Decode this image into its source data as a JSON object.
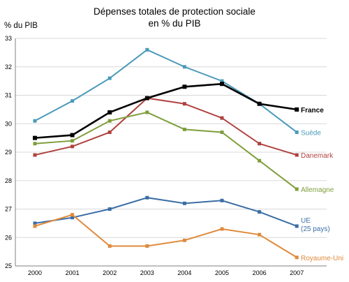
{
  "chart_data": {
    "type": "line",
    "title": [
      "Dépenses totales de protection sociale",
      "en % du PIB"
    ],
    "ylabel": "% du PIB",
    "xlabel": "",
    "x": [
      "2000",
      "2001",
      "2002",
      "2003",
      "2004",
      "2005",
      "2006",
      "2007"
    ],
    "ylim": [
      25,
      33
    ],
    "yticks": [
      "25",
      "26",
      "27",
      "28",
      "29",
      "30",
      "31",
      "32",
      "33"
    ],
    "grid": true,
    "legend": "inline-right",
    "series": [
      {
        "name": "Suède",
        "color": "#4a9ab9",
        "values": [
          30.1,
          30.8,
          31.6,
          32.6,
          32.0,
          31.5,
          30.7,
          29.7
        ]
      },
      {
        "name": "Danemark",
        "color": "#b0413e",
        "values": [
          28.9,
          29.2,
          29.7,
          30.9,
          30.7,
          30.2,
          29.3,
          28.9
        ]
      },
      {
        "name": "Allemagne",
        "color": "#7f9e3c",
        "values": [
          29.3,
          29.4,
          30.1,
          30.4,
          29.8,
          29.7,
          28.7,
          27.7
        ]
      },
      {
        "name": "UE (25 pays)",
        "label_lines": [
          "UE",
          "(25 pays)"
        ],
        "color": "#3a6ea5",
        "values": [
          26.5,
          26.7,
          27.0,
          27.4,
          27.2,
          27.3,
          26.9,
          26.4
        ]
      },
      {
        "name": "Royaume-Uni",
        "color": "#e08a3c",
        "values": [
          26.4,
          26.8,
          25.7,
          25.7,
          25.9,
          26.3,
          26.1,
          25.3
        ]
      },
      {
        "name": "France",
        "color": "#000000",
        "values": [
          29.5,
          29.6,
          30.4,
          30.9,
          31.3,
          31.4,
          30.7,
          30.5
        ]
      }
    ]
  }
}
